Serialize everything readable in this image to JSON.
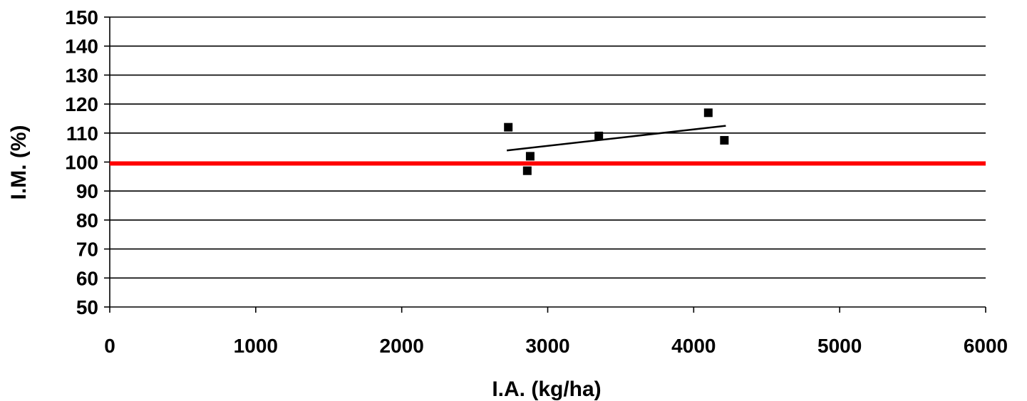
{
  "chart_data": {
    "type": "scatter",
    "title": "",
    "xlabel": "I.A. (kg/ha)",
    "ylabel": "I.M. (%)",
    "xlim": [
      0,
      6000
    ],
    "ylim": [
      50,
      150
    ],
    "x_ticks": [
      0,
      1000,
      2000,
      3000,
      4000,
      5000,
      6000
    ],
    "y_ticks": [
      50,
      60,
      70,
      80,
      90,
      100,
      110,
      120,
      130,
      140,
      150
    ],
    "grid": "horizontal",
    "legend": "none",
    "colors": {
      "points": "#000000",
      "trendline": "#000000",
      "reference_line": "#ff0000",
      "grid": "#000000"
    },
    "series": [
      {
        "points": [
          {
            "x": 2730,
            "y": 112
          },
          {
            "x": 2860,
            "y": 97
          },
          {
            "x": 2880,
            "y": 102
          },
          {
            "x": 3350,
            "y": 109
          },
          {
            "x": 4100,
            "y": 117
          },
          {
            "x": 4210,
            "y": 107.5
          }
        ]
      }
    ],
    "trendline": {
      "x": [
        2720,
        4220
      ],
      "y": [
        104,
        112.5
      ]
    },
    "reference_line": {
      "y": 99.5
    }
  }
}
